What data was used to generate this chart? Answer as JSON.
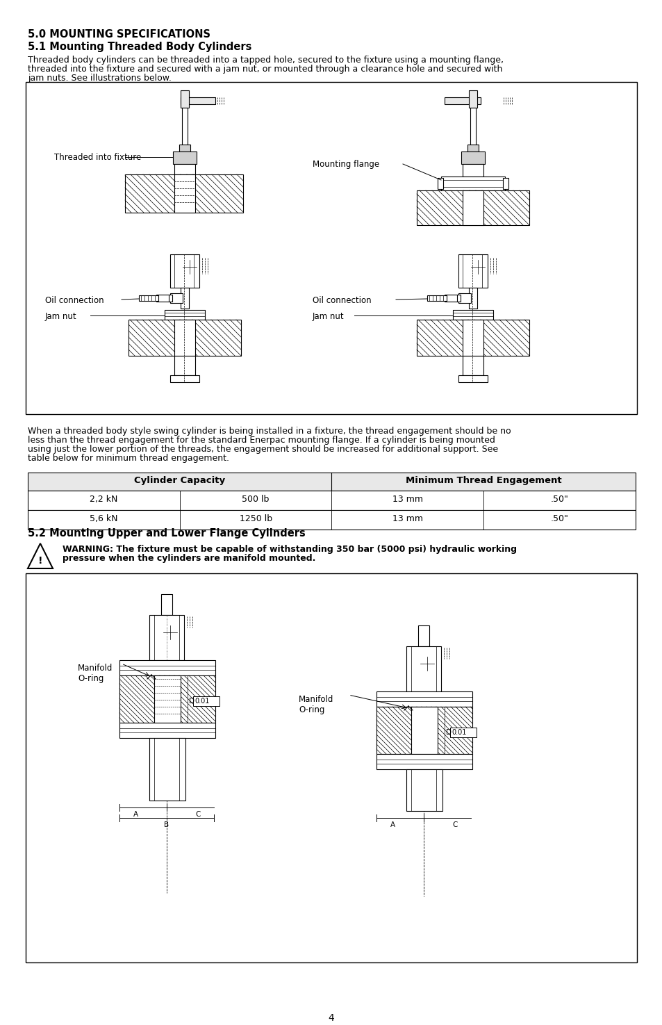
{
  "title": "5.0 MOUNTING SPECIFICATIONS",
  "section1_title": "5.1 Mounting Threaded Body Cylinders",
  "section1_body1": "Threaded body cylinders can be threaded into a tapped hole, secured to the fixture using a mounting flange,",
  "section1_body2": "threaded into the fixture and secured with a jam nut, or mounted through a clearance hole and secured with",
  "section1_body3": "jam nuts. See illustrations below.",
  "thread_eng1": "When a threaded body style swing cylinder is being installed in a fixture, the thread engagement should be no",
  "thread_eng2": "less than the thread engagement for the standard Enerpac mounting flange. If a cylinder is being mounted",
  "thread_eng3": "using just the lower portion of the threads, the engagement should be increased for additional support. See",
  "thread_eng4": "table below for minimum thread engagement.",
  "table_header1": "Cylinder Capacity",
  "table_header2": "Minimum Thread Engagement",
  "table_row1": [
    "2,2 kN",
    "500 lb",
    "13 mm",
    ".50\""
  ],
  "table_row2": [
    "5,6 kN",
    "1250 lb",
    "13 mm",
    ".50\""
  ],
  "section2_title": "5.2 Mounting Upper and Lower Flange Cylinders",
  "warning_text1": "WARNING: The fixture must be capable of withstanding 350 bar (5000 psi) hydraulic working",
  "warning_text2": "pressure when the cylinders are manifold mounted.",
  "page_number": "4",
  "label_threaded": "Threaded into fixture",
  "label_oil_l": "Oil connection",
  "label_jam_l": "Jam nut",
  "label_mounting_flange": "Mounting flange",
  "label_oil_r": "Oil connection",
  "label_jam_r": "Jam nut",
  "label_manifold_l": "Manifold\nO-ring",
  "label_manifold_r": "Manifold\nO-ring",
  "bg_color": "#ffffff"
}
